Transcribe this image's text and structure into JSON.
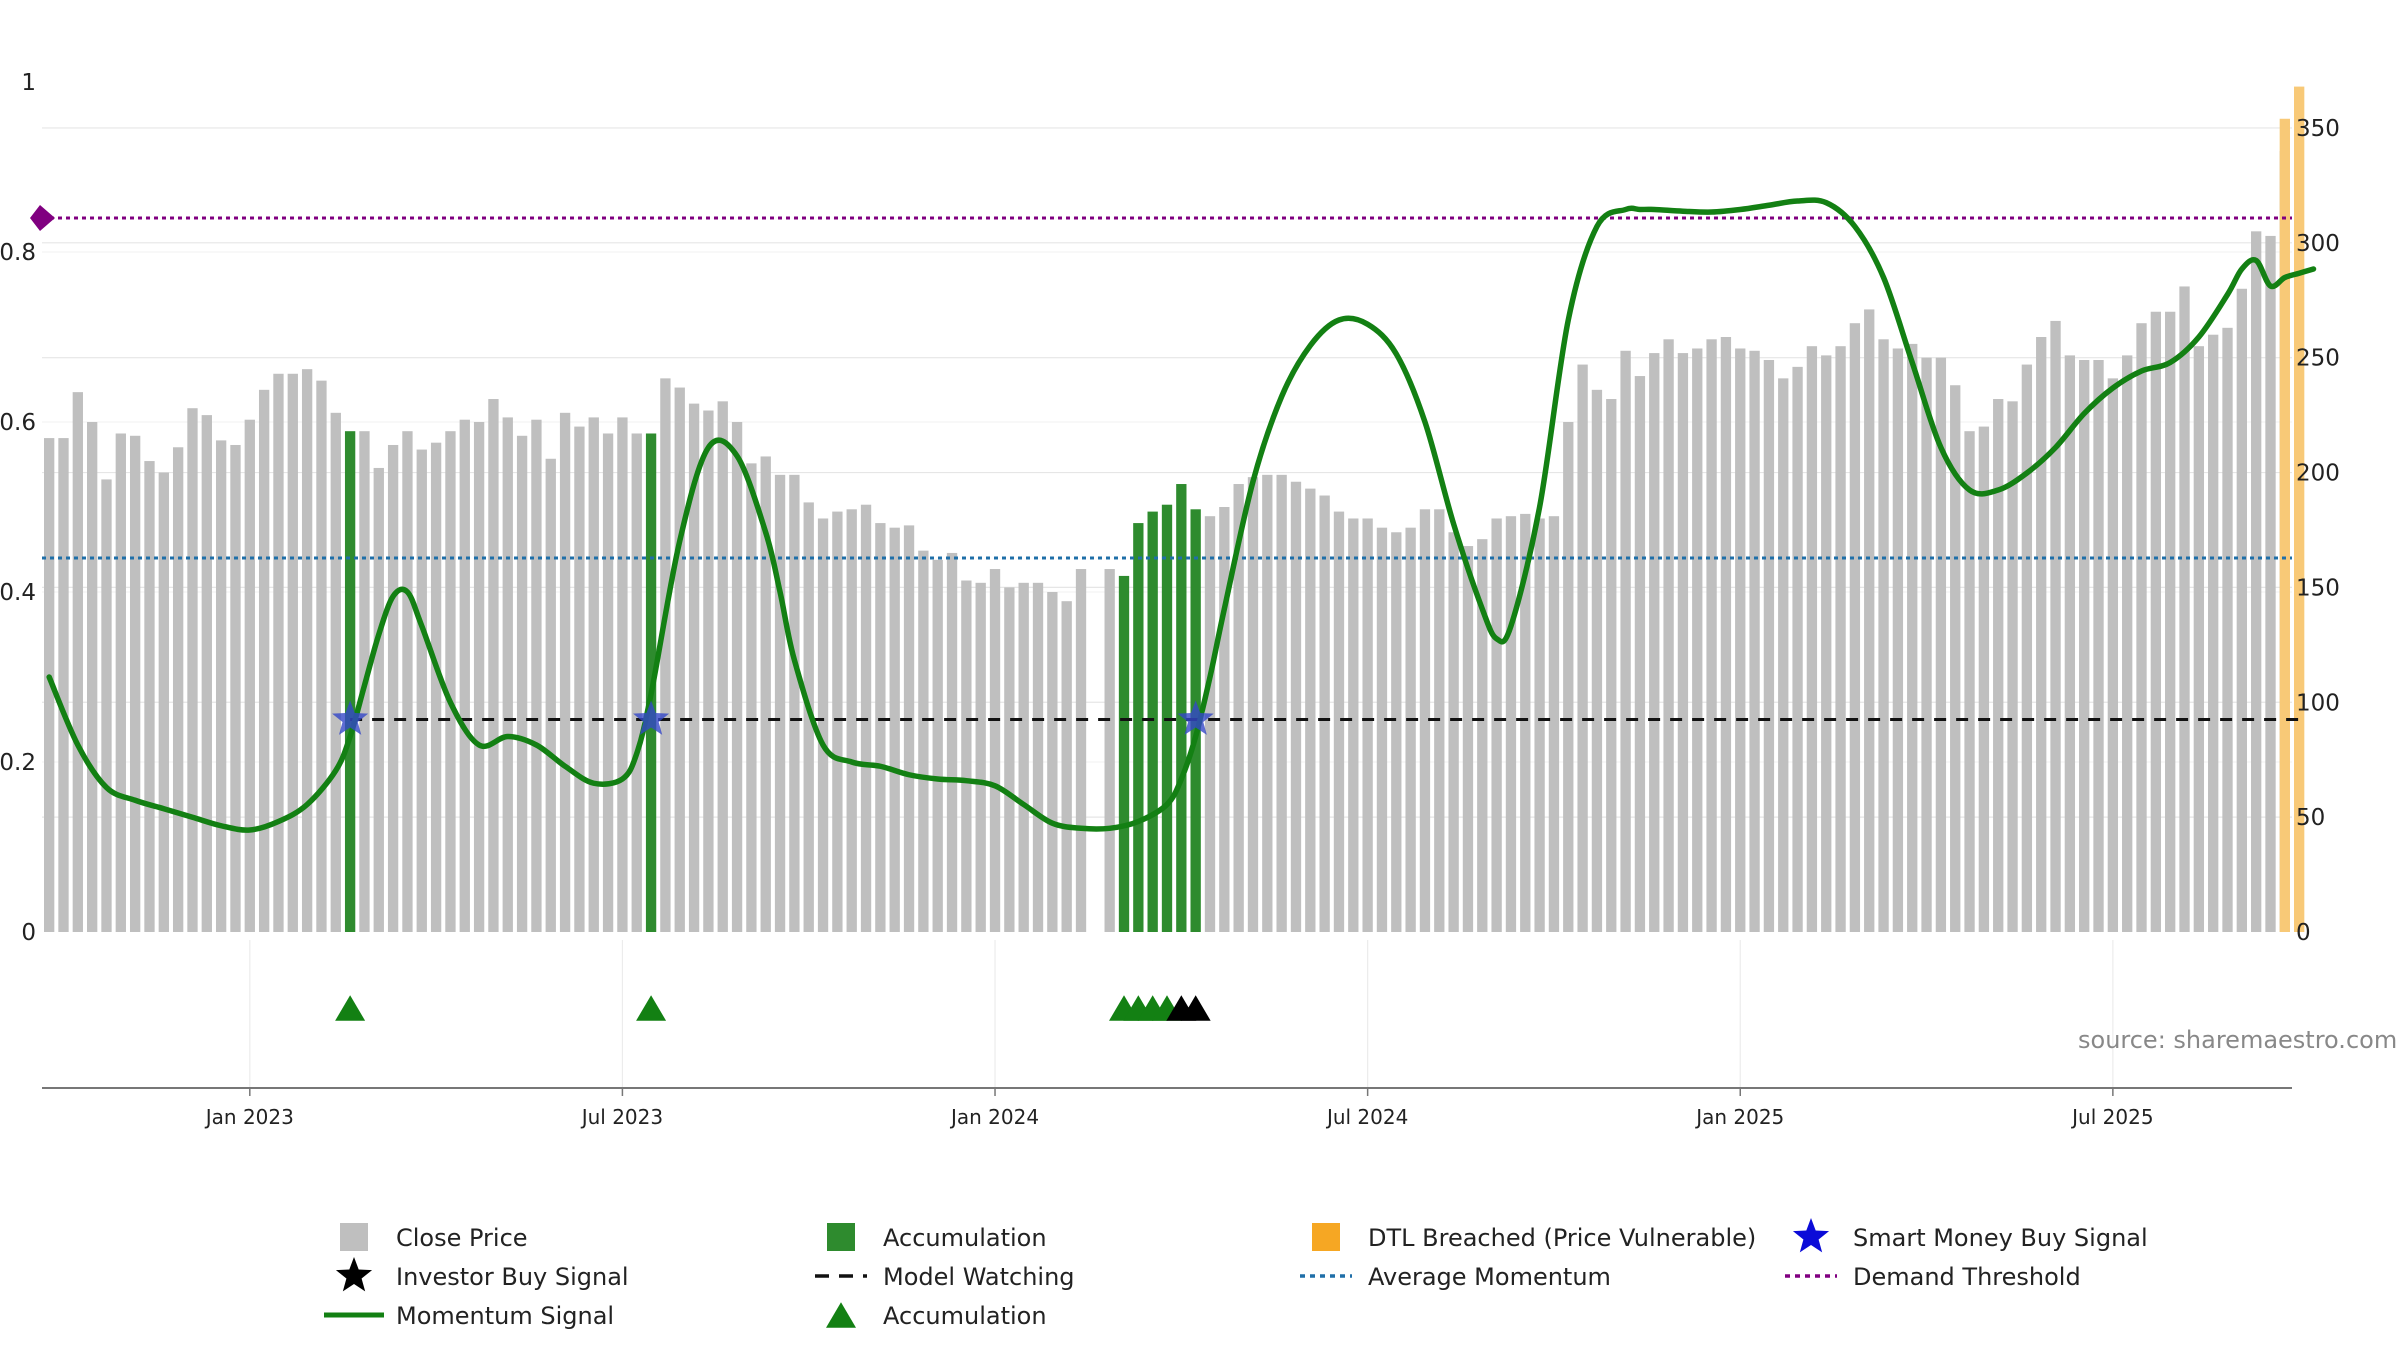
{
  "colors": {
    "close_price": "#bfbfbf",
    "accumulation_bar": "#2e8b2e",
    "dtl_breached": "#f8c977",
    "momentum": "#138013",
    "average_momentum": "#1f6fa8",
    "demand_threshold": "#800080",
    "model_watching": "#111111",
    "smart_money_star": "#3547c8",
    "investor_star": "#000000",
    "accumulation_triangle": "#138013"
  },
  "source_label": "source: sharemaestro.com",
  "chart_data": {
    "type": "bar",
    "left_axis": {
      "ylim": [
        0,
        1
      ],
      "ticks": [
        0,
        0.2,
        0.4,
        0.6,
        0.8,
        1
      ],
      "tick_labels": [
        "0",
        "0.2",
        "0.4",
        "0.6",
        "0.8",
        "1"
      ]
    },
    "right_axis": {
      "ylim": [
        0,
        370
      ],
      "ticks": [
        0,
        50,
        100,
        150,
        200,
        250,
        300,
        350
      ],
      "tick_labels": [
        "0",
        "50",
        "100",
        "150",
        "200",
        "250",
        "300",
        "350"
      ]
    },
    "x_ticks": [
      {
        "label": "Jan 2023",
        "week": 14
      },
      {
        "label": "Jul 2023",
        "week": 40
      },
      {
        "label": "Jan 2024",
        "week": 66
      },
      {
        "label": "Jul 2024",
        "week": 92
      },
      {
        "label": "Jan 2025",
        "week": 118
      },
      {
        "label": "Jul 2025",
        "week": 144
      }
    ],
    "close_price": [
      215,
      215,
      235,
      222,
      197,
      217,
      216,
      205,
      200,
      211,
      228,
      225,
      214,
      212,
      223,
      236,
      243,
      243,
      245,
      240,
      226,
      217,
      218,
      202,
      212,
      218,
      210,
      213,
      218,
      223,
      222,
      232,
      224,
      216,
      223,
      206,
      226,
      220,
      224,
      217,
      224,
      217,
      225,
      241,
      237,
      230,
      227,
      231,
      222,
      204,
      207,
      199,
      199,
      187,
      180,
      183,
      184,
      186,
      178,
      176,
      177,
      166,
      162,
      165,
      153,
      152,
      158,
      150,
      152,
      152,
      148,
      144,
      158,
      0,
      158,
      161,
      155,
      175,
      179,
      182,
      185,
      181,
      185,
      195,
      198,
      199,
      199,
      196,
      193,
      190,
      183,
      180,
      180,
      176,
      174,
      176,
      184,
      184,
      174,
      168,
      171,
      180,
      181,
      182,
      180,
      181,
      222,
      247,
      236,
      232,
      253,
      242,
      252,
      258,
      252,
      254,
      258,
      259,
      254,
      253,
      249,
      241,
      246,
      255,
      251,
      255,
      265,
      271,
      258,
      254,
      256,
      250,
      250,
      238,
      218,
      220,
      232,
      231,
      247,
      259,
      266,
      251,
      249,
      249,
      241,
      251,
      265,
      270,
      270,
      281,
      255,
      260,
      263,
      280,
      305,
      303,
      340
    ],
    "accumulation_bar_weeks": [
      21,
      42,
      75,
      76,
      77,
      78,
      79,
      80
    ],
    "accumulation_bar_values": [
      218,
      217,
      155,
      178,
      183,
      186,
      195,
      184
    ],
    "dtl_breached_weeks": [
      156,
      157
    ],
    "dtl_breached_values": [
      354,
      368
    ],
    "momentum": {
      "weeks": [
        0,
        2,
        4,
        6,
        8,
        10,
        12,
        14,
        16,
        18,
        20,
        21,
        22,
        23,
        24,
        25,
        26,
        28,
        30,
        32,
        34,
        36,
        38,
        40,
        41,
        42,
        44,
        46,
        48,
        50,
        51,
        52,
        54,
        56,
        58,
        60,
        62,
        64,
        66,
        68,
        70,
        72,
        74,
        76,
        78,
        79,
        80,
        81,
        82,
        84,
        86,
        88,
        90,
        92,
        94,
        96,
        98,
        100,
        101,
        102,
        104,
        106,
        108,
        110,
        111,
        112,
        114,
        116,
        118,
        120,
        122,
        124,
        126,
        128,
        130,
        132,
        134,
        136,
        138,
        140,
        142,
        144,
        146,
        148,
        150,
        152,
        153,
        154,
        155,
        156,
        157,
        158
      ],
      "values": [
        0.3,
        0.22,
        0.17,
        0.155,
        0.145,
        0.135,
        0.125,
        0.12,
        0.13,
        0.15,
        0.19,
        0.23,
        0.29,
        0.35,
        0.395,
        0.4,
        0.36,
        0.27,
        0.22,
        0.23,
        0.22,
        0.195,
        0.175,
        0.18,
        0.21,
        0.28,
        0.46,
        0.57,
        0.56,
        0.47,
        0.4,
        0.32,
        0.22,
        0.2,
        0.195,
        0.185,
        0.18,
        0.178,
        0.172,
        0.15,
        0.128,
        0.122,
        0.122,
        0.13,
        0.15,
        0.18,
        0.23,
        0.3,
        0.38,
        0.53,
        0.63,
        0.69,
        0.72,
        0.715,
        0.68,
        0.6,
        0.48,
        0.38,
        0.345,
        0.36,
        0.5,
        0.72,
        0.83,
        0.85,
        0.85,
        0.85,
        0.848,
        0.847,
        0.85,
        0.855,
        0.86,
        0.858,
        0.83,
        0.77,
        0.67,
        0.57,
        0.52,
        0.52,
        0.54,
        0.57,
        0.61,
        0.64,
        0.66,
        0.67,
        0.7,
        0.75,
        0.78,
        0.79,
        0.76,
        0.77,
        0.775,
        0.78
      ]
    },
    "average_momentum": 0.44,
    "demand_threshold": 0.84,
    "model_watching": {
      "start_week": 21,
      "end_week": 157,
      "level": 0.25
    },
    "smart_money_buy_signal_weeks": [
      21,
      42,
      80
    ],
    "investor_buy_signal_weeks": [],
    "accumulation_triangle_weeks": [
      21,
      42,
      75,
      76,
      77,
      78
    ],
    "black_triangle_weeks": [
      79,
      80
    ],
    "legend": [
      {
        "key": "close",
        "label": "Close Price"
      },
      {
        "key": "accum_bar",
        "label": "Accumulation"
      },
      {
        "key": "dtl",
        "label": "DTL Breached (Price Vulnerable)"
      },
      {
        "key": "smart_star",
        "label": "Smart Money Buy Signal"
      },
      {
        "key": "inv_star",
        "label": "Investor Buy Signal"
      },
      {
        "key": "watching",
        "label": "Model Watching"
      },
      {
        "key": "avg_mom",
        "label": "Average Momentum"
      },
      {
        "key": "demand",
        "label": "Demand Threshold"
      },
      {
        "key": "mom_line",
        "label": "Momentum Signal"
      },
      {
        "key": "accum_tri",
        "label": "Accumulation"
      }
    ]
  }
}
